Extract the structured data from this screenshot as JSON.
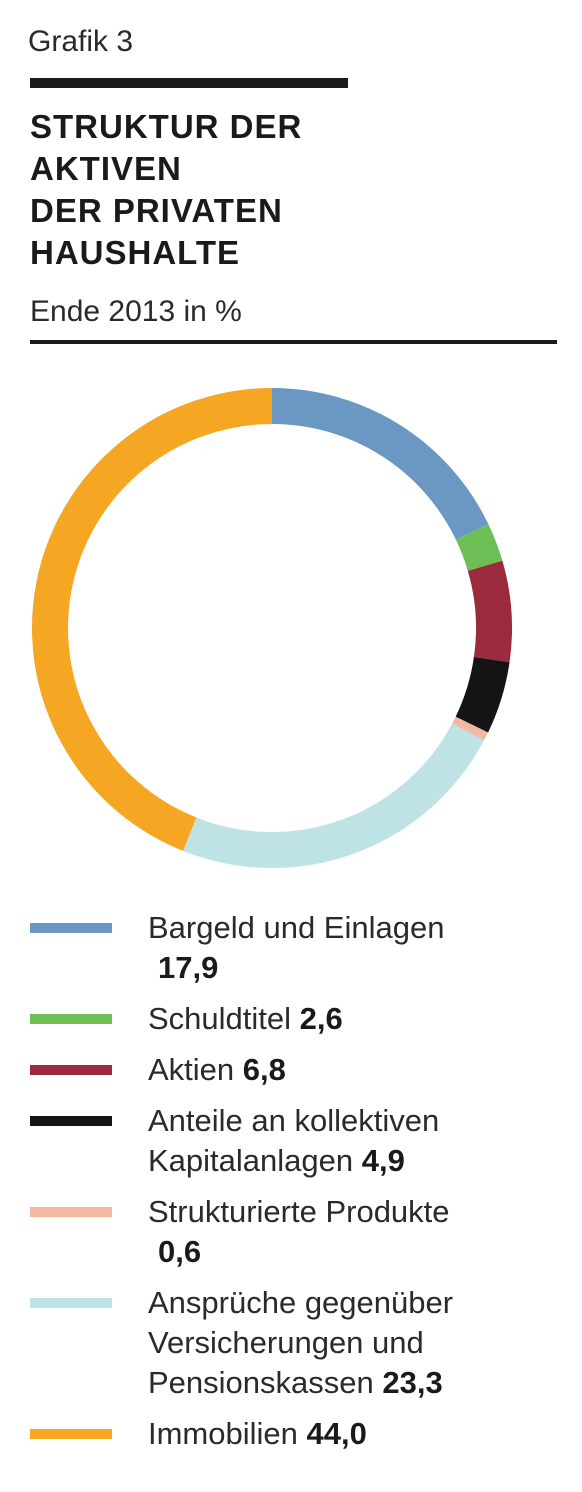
{
  "header": {
    "kicker": "Grafik 3",
    "title_lines": [
      "STRUKTUR DER",
      "AKTIVEN",
      "DER PRIVATEN",
      "HAUSHALTE"
    ],
    "subtitle": "Ende 2013 in %"
  },
  "chart_data": {
    "type": "pie",
    "style": "donut",
    "title": "STRUKTUR DER AKTIVEN DER PRIVATEN HAUSHALTE",
    "subtitle": "Ende 2013 in %",
    "unit": "%",
    "legend_position": "bottom",
    "categories": [
      "Bargeld und Einlagen",
      "Schuldtitel",
      "Aktien",
      "Anteile an kollektiven Kapitalanlagen",
      "Strukturierte Produkte",
      "Ansprüche gegenüber Versicherungen und Pensionskassen",
      "Immobilien"
    ],
    "values": [
      17.9,
      2.6,
      6.8,
      4.9,
      0.6,
      23.3,
      44.0
    ],
    "value_labels": [
      "17,9",
      "2,6",
      "6,8",
      "4,9",
      "0,6",
      "23,3",
      "44,0"
    ],
    "colors": [
      "#6a98c2",
      "#6dbf55",
      "#9a2a3c",
      "#141414",
      "#f2b8a2",
      "#bfe3e5",
      "#f5a623"
    ]
  },
  "legend": {
    "items": [
      {
        "label_lines": [
          "Bargeld und Einlagen"
        ],
        "value": "17,9"
      },
      {
        "label_lines": [
          "Schuldtitel"
        ],
        "value": "2,6"
      },
      {
        "label_lines": [
          "Aktien"
        ],
        "value": "6,8"
      },
      {
        "label_lines": [
          "Anteile an kollektiven",
          "Kapitalanlagen"
        ],
        "value": "4,9"
      },
      {
        "label_lines": [
          "Strukturierte Produkte"
        ],
        "value": "0,6"
      },
      {
        "label_lines": [
          "Ansprüche gegenüber",
          "Versicherungen und",
          "Pensionskassen"
        ],
        "value": "23,3"
      },
      {
        "label_lines": [
          "Immobilien"
        ],
        "value": "44,0"
      }
    ]
  }
}
